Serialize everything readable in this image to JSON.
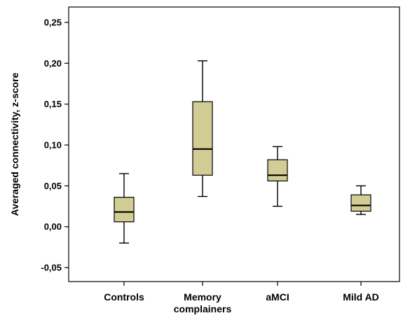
{
  "chart_data": {
    "type": "box",
    "ylabel": "Averaged connectivity, z-score",
    "xlabel": "",
    "ylim": [
      -0.06,
      0.27
    ],
    "y_ticks": [
      {
        "value": -0.05,
        "label": "-0,05"
      },
      {
        "value": 0.0,
        "label": "0,00"
      },
      {
        "value": 0.05,
        "label": "0,05"
      },
      {
        "value": 0.1,
        "label": "0,10"
      },
      {
        "value": 0.15,
        "label": "0,15"
      },
      {
        "value": 0.2,
        "label": "0,20"
      },
      {
        "value": 0.25,
        "label": "0,25"
      }
    ],
    "categories": [
      {
        "lines": [
          "Controls"
        ]
      },
      {
        "lines": [
          "Memory",
          "complainers"
        ]
      },
      {
        "lines": [
          "aMCI"
        ]
      },
      {
        "lines": [
          "Mild AD"
        ]
      }
    ],
    "boxes": [
      {
        "min": -0.02,
        "q1": 0.006,
        "median": 0.018,
        "q3": 0.036,
        "max": 0.065
      },
      {
        "min": 0.037,
        "q1": 0.063,
        "median": 0.095,
        "q3": 0.153,
        "max": 0.203
      },
      {
        "min": 0.025,
        "q1": 0.056,
        "median": 0.063,
        "q3": 0.082,
        "max": 0.098
      },
      {
        "min": 0.015,
        "q1": 0.019,
        "median": 0.026,
        "q3": 0.039,
        "max": 0.05
      }
    ],
    "box_color": "#d1cd95",
    "grid": false,
    "legend": "none"
  }
}
